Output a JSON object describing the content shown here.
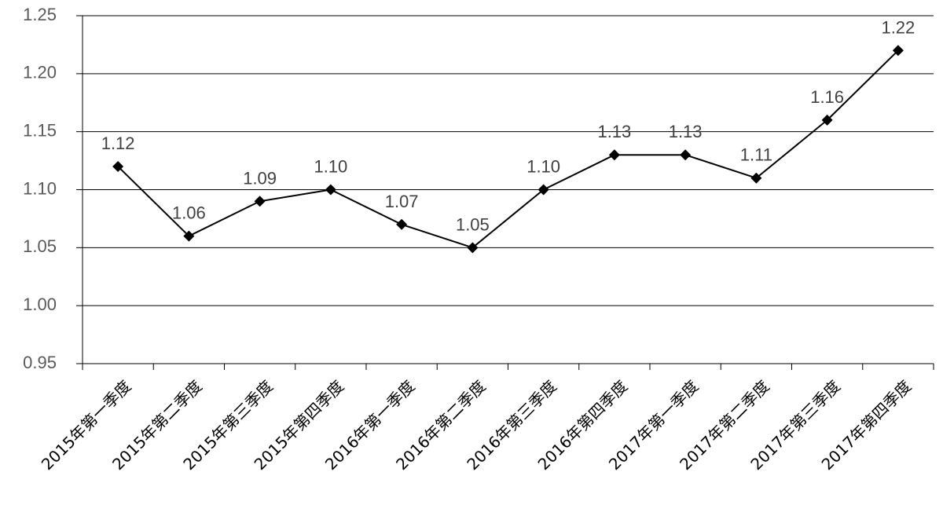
{
  "chart_data": {
    "type": "line",
    "title": "",
    "xlabel": "",
    "ylabel": "",
    "ylim": [
      0.95,
      1.25
    ],
    "yticks": [
      "0.95",
      "1.00",
      "1.05",
      "1.10",
      "1.15",
      "1.20",
      "1.25"
    ],
    "grid": true,
    "legend": "none",
    "categories": [
      "2015年第一季度",
      "2015年第二季度",
      "2015年第三季度",
      "2015年第四季度",
      "2016年第一季度",
      "2016年第二季度",
      "2016年第三季度",
      "2016年第四季度",
      "2017年第一季度",
      "2017年第二季度",
      "2017年第三季度",
      "2017年第四季度"
    ],
    "series": [
      {
        "values": [
          1.12,
          1.06,
          1.09,
          1.1,
          1.07,
          1.05,
          1.1,
          1.13,
          1.13,
          1.11,
          1.16,
          1.22
        ],
        "labels": [
          "1.12",
          "1.06",
          "1.09",
          "1.10",
          "1.07",
          "1.05",
          "1.10",
          "1.13",
          "1.13",
          "1.11",
          "1.16",
          "1.22"
        ],
        "color": "#000000",
        "marker": "diamond"
      }
    ]
  }
}
